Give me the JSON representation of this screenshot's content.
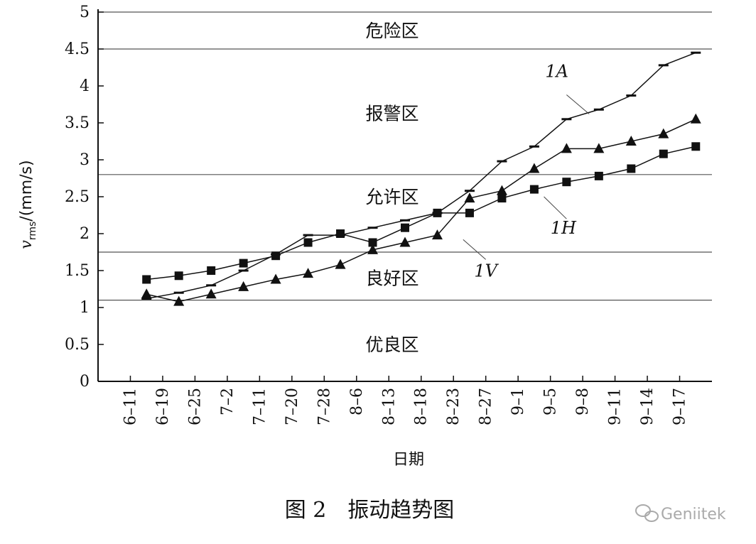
{
  "chart_data": {
    "type": "line",
    "ylabel_main": "v",
    "ylabel_sub": "rms",
    "ylabel_unit": "/(mm/s)",
    "xlabel": "日期",
    "ylim": [
      0,
      5
    ],
    "yticks": [
      0,
      0.5,
      1,
      1.5,
      2,
      2.5,
      3,
      3.5,
      4,
      4.5,
      5
    ],
    "ytick_labels": [
      "0",
      "0.5",
      "1",
      "1.5",
      "2",
      "2.5",
      "3",
      "3.5",
      "4",
      "4.5",
      "5"
    ],
    "x_tick_labels": [
      "6–11",
      "6–19",
      "6–25",
      "7–2",
      "7–11",
      "7–20",
      "7–28",
      "8–6",
      "8–13",
      "8–18",
      "8–23",
      "8–27",
      "9–1",
      "9–5",
      "9–8",
      "9–11",
      "9–14",
      "9–17"
    ],
    "zones": [
      {
        "label": "危险区",
        "label_y": 4.75
      },
      {
        "label": "报警区",
        "label_y": 3.63
      },
      {
        "label": "允许区",
        "label_y": 2.5
      },
      {
        "label": "良好区",
        "label_y": 1.4
      },
      {
        "label": "优良区",
        "label_y": 0.5
      }
    ],
    "zone_boundaries": [
      1.1,
      1.75,
      2.8,
      4.5,
      5.0
    ],
    "series": [
      {
        "name": "1A",
        "marker": "dash",
        "x": [
          0.5,
          1.5,
          2.5,
          3.5,
          4.5,
          5.5,
          6.5,
          7.5,
          8.5,
          9.5,
          10.5,
          11.5,
          12.5,
          13.5,
          14.5,
          15.5,
          16.5,
          17.5
        ],
        "y": [
          1.12,
          1.2,
          1.3,
          1.5,
          1.72,
          1.98,
          1.98,
          2.08,
          2.18,
          2.28,
          2.58,
          2.98,
          3.18,
          3.55,
          3.68,
          3.87,
          4.28,
          4.45
        ]
      },
      {
        "name": "1H",
        "marker": "square",
        "x": [
          0.5,
          1.5,
          2.5,
          3.5,
          4.5,
          5.5,
          6.5,
          7.5,
          8.5,
          9.5,
          10.5,
          11.5,
          12.5,
          13.5,
          14.5,
          15.5,
          16.5,
          17.5
        ],
        "y": [
          1.38,
          1.43,
          1.5,
          1.6,
          1.7,
          1.88,
          2.0,
          1.88,
          2.08,
          2.28,
          2.28,
          2.48,
          2.6,
          2.7,
          2.78,
          2.88,
          3.08,
          3.18
        ]
      },
      {
        "name": "1V",
        "marker": "triangle",
        "x": [
          0.5,
          1.5,
          2.5,
          3.5,
          4.5,
          5.5,
          6.5,
          7.5,
          8.5,
          9.5,
          10.5,
          11.5,
          12.5,
          13.5,
          14.5,
          15.5,
          16.5,
          17.5
        ],
        "y": [
          1.18,
          1.08,
          1.18,
          1.28,
          1.38,
          1.46,
          1.58,
          1.78,
          1.88,
          1.98,
          2.48,
          2.58,
          2.88,
          3.15,
          3.15,
          3.25,
          3.35,
          3.55
        ]
      }
    ],
    "series_labels": [
      {
        "text": "1A",
        "x": 13.2,
        "y": 4.12,
        "pointer_from": [
          13.5,
          3.88
        ],
        "pointer_to": [
          14.2,
          3.62
        ]
      },
      {
        "text": "1H",
        "x": 13.4,
        "y": 2.0,
        "pointer_from": [
          13.5,
          2.2
        ],
        "pointer_to": [
          12.8,
          2.5
        ]
      },
      {
        "text": "1V",
        "x": 11.0,
        "y": 1.42,
        "pointer_from": [
          11.0,
          1.65
        ],
        "pointer_to": [
          10.3,
          1.92
        ]
      }
    ],
    "grid": false
  },
  "caption": "图 2　振动趋势图",
  "watermark": "Geniitek"
}
